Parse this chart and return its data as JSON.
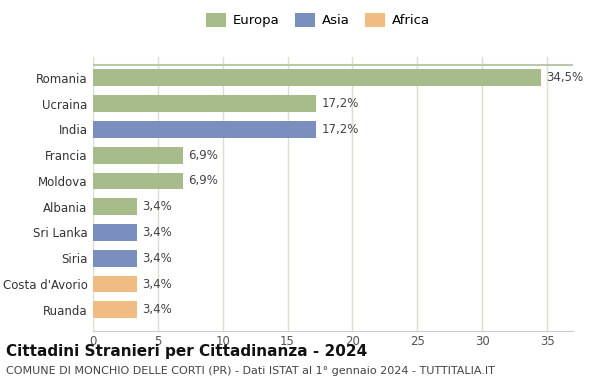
{
  "categories": [
    "Ruanda",
    "Costa d'Avorio",
    "Siria",
    "Sri Lanka",
    "Albania",
    "Moldova",
    "Francia",
    "India",
    "Ucraina",
    "Romania"
  ],
  "values": [
    3.4,
    3.4,
    3.4,
    3.4,
    3.4,
    6.9,
    6.9,
    17.2,
    17.2,
    34.5
  ],
  "labels": [
    "3,4%",
    "3,4%",
    "3,4%",
    "3,4%",
    "3,4%",
    "6,9%",
    "6,9%",
    "17,2%",
    "17,2%",
    "34,5%"
  ],
  "colors": [
    "#f0bc82",
    "#f0bc82",
    "#7b8fbe",
    "#7b8fbe",
    "#a8bb8a",
    "#a8bb8a",
    "#a8bb8a",
    "#7b8fbe",
    "#a8bb8a",
    "#a8bb8a"
  ],
  "legend_labels": [
    "Europa",
    "Asia",
    "Africa"
  ],
  "legend_colors": [
    "#a8bb8a",
    "#7b8fbe",
    "#f0bc82"
  ],
  "title": "Cittadini Stranieri per Cittadinanza - 2024",
  "subtitle": "COMUNE DI MONCHIO DELLE CORTI (PR) - Dati ISTAT al 1° gennaio 2024 - TUTTITALIA.IT",
  "xlim": [
    0,
    37
  ],
  "xticks": [
    0,
    5,
    10,
    15,
    20,
    25,
    30,
    35
  ],
  "bg_color": "#ffffff",
  "plot_bg_color": "#ffffff",
  "grid_color": "#d8e0d0",
  "bar_height": 0.65,
  "label_fontsize": 8.5,
  "ytick_fontsize": 8.5,
  "xtick_fontsize": 8.5,
  "title_fontsize": 11,
  "subtitle_fontsize": 8,
  "legend_fontsize": 9.5
}
